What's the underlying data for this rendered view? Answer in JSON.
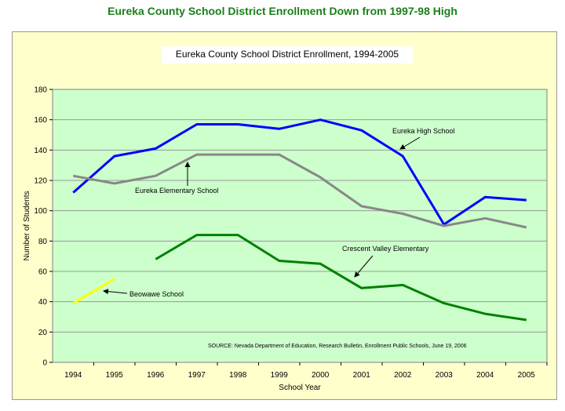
{
  "page_title": "Eureka County School District Enrollment Down from 1997-98 High",
  "chart_data": {
    "type": "line",
    "title": "Eureka County School District Enrollment, 1994-2005",
    "xlabel": "School Year",
    "ylabel": "Number of Students",
    "x": [
      1994,
      1995,
      1996,
      1997,
      1998,
      1999,
      2000,
      2001,
      2002,
      2003,
      2004,
      2005
    ],
    "ylim": [
      0,
      180
    ],
    "yticks": [
      0,
      20,
      40,
      60,
      80,
      100,
      120,
      140,
      160,
      180
    ],
    "grid": true,
    "series": [
      {
        "name": "Eureka High School",
        "color": "#0000ff",
        "values": [
          112,
          136,
          141,
          157,
          157,
          154,
          160,
          153,
          136,
          91,
          109,
          107
        ]
      },
      {
        "name": "Eureka Elementary School",
        "color": "#888888",
        "values": [
          123,
          118,
          123,
          137,
          137,
          137,
          122,
          103,
          98,
          90,
          95,
          89
        ]
      },
      {
        "name": "Crescent Valley Elementary",
        "color": "#008000",
        "values": [
          null,
          null,
          68,
          84,
          84,
          67,
          65,
          49,
          51,
          39,
          32,
          28
        ]
      },
      {
        "name": "Beowawe School",
        "color": "#ffff00",
        "values": [
          39,
          55,
          null,
          null,
          null,
          null,
          null,
          null,
          null,
          null,
          null,
          null
        ]
      }
    ],
    "annotations": [
      {
        "text": "Eureka High School"
      },
      {
        "text": "Eureka Elementary School"
      },
      {
        "text": "Crescent Valley Elementary"
      },
      {
        "text": "Beowawe School"
      }
    ],
    "source_note": "SOURCE: Nevada Department of Education, Research Bulletin, Enrollment Public Schools, June 19, 2006"
  }
}
